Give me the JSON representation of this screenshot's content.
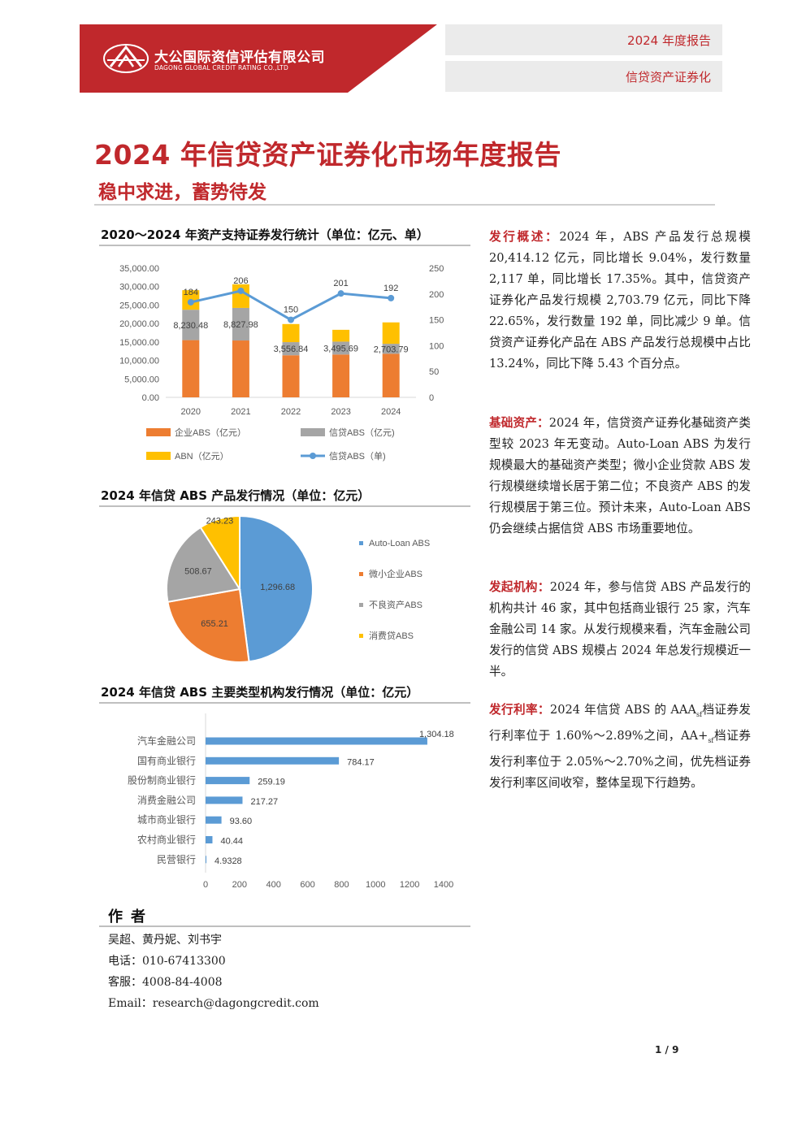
{
  "header": {
    "company_cn": "大公国际资信评估有限公司",
    "company_en": "DAGONG GLOBAL CREDIT RATING CO.,LTD",
    "tag_report": "2024 年度报告",
    "tag_category": "信贷资产证券化",
    "brand_red": "#c0282c"
  },
  "title": "2024 年信贷资产证券化市场年度报告",
  "subtitle": "稳中求进，蓄势待发",
  "sections": {
    "chart1_title": "2020～2024 年资产支持证券发行统计（单位：亿元、单）",
    "chart2_title": "2024 年信贷 ABS 产品发行情况（单位：亿元）",
    "chart3_title": "2024 年信贷 ABS 主要类型机构发行情况（单位：亿元）"
  },
  "chart_data": [
    {
      "type": "bar",
      "stacked": true,
      "categories": [
        "2020",
        "2021",
        "2022",
        "2023",
        "2024"
      ],
      "series": [
        {
          "name": "企业ABS（亿元）",
          "color": "#ed7d31",
          "values": [
            15500,
            15400,
            11400,
            11600,
            11800
          ]
        },
        {
          "name": "信贷ABS（亿元)",
          "color": "#a5a5a5",
          "values": [
            8230.48,
            8827.98,
            3556.84,
            3495.69,
            2703.79
          ],
          "labels": [
            "8,230.48",
            "8,827.98",
            "3,556.84",
            "3,495.69",
            "2,703.79"
          ]
        },
        {
          "name": "ABN（亿元）",
          "color": "#ffc000",
          "values": [
            5300,
            6400,
            4900,
            3200,
            5800
          ]
        },
        {
          "name": "信贷ABS（单)",
          "color": "#5b9bd5",
          "type": "line",
          "axis": "right",
          "values": [
            184,
            206,
            150,
            201,
            192
          ],
          "labels": [
            "184",
            "206",
            "150",
            "201",
            "192"
          ]
        }
      ],
      "ylim": [
        0,
        35000
      ],
      "yticks": [
        "0.00",
        "5,000.00",
        "10,000.00",
        "15,000.00",
        "20,000.00",
        "25,000.00",
        "30,000.00",
        "35,000.00"
      ],
      "y2lim": [
        0,
        250
      ],
      "y2ticks": [
        "0",
        "50",
        "100",
        "150",
        "200",
        "250"
      ],
      "legend": "bottom",
      "grid": false
    },
    {
      "type": "pie",
      "labels": [
        "Auto-Loan ABS",
        "微小企业ABS",
        "不良资产ABS",
        "消费贷ABS"
      ],
      "values": [
        1296.68,
        655.21,
        508.67,
        243.23
      ],
      "value_labels": [
        "1,296.68",
        "655.21",
        "508.67",
        "243.23"
      ],
      "colors": [
        "#5b9bd5",
        "#ed7d31",
        "#a5a5a5",
        "#ffc000"
      ],
      "legend": "right"
    },
    {
      "type": "bar",
      "orientation": "horizontal",
      "categories": [
        "汽车金融公司",
        "国有商业银行",
        "股份制商业银行",
        "消费金融公司",
        "城市商业银行",
        "农村商业银行",
        "民营银行"
      ],
      "values": [
        1304.18,
        784.17,
        259.19,
        217.27,
        93.6,
        40.44,
        4.9328
      ],
      "value_labels": [
        "1,304.18",
        "784.17",
        "259.19",
        "217.27",
        "93.60",
        "40.44",
        "4.9328"
      ],
      "color": "#5b9bd5",
      "xlim": [
        0,
        1400
      ],
      "xticks": [
        "0",
        "200",
        "400",
        "600",
        "800",
        "1000",
        "1200",
        "1400"
      ]
    }
  ],
  "paragraphs": [
    {
      "label": "发行概述：",
      "text": "2024 年，ABS 产品发行总规模 20,414.12 亿元，同比增长 9.04%，发行数量 2,117 单，同比增长 17.35%。其中，信贷资产证券化产品发行规模 2,703.79 亿元，同比下降 22.65%，发行数量 192 单，同比减少 9 单。信贷资产证券化产品在 ABS 产品发行总规模中占比 13.24%，同比下降 5.43 个百分点。"
    },
    {
      "label": "基础资产：",
      "text": "2024 年，信贷资产证券化基础资产类型较 2023 年无变动。Auto-Loan ABS 为发行规模最大的基础资产类型；微小企业贷款 ABS 发行规模继续增长居于第二位；不良资产 ABS 的发行规模居于第三位。预计未来，Auto-Loan ABS 仍会继续占据信贷 ABS 市场重要地位。"
    },
    {
      "label": "发起机构：",
      "text": "2024 年，参与信贷 ABS 产品发行的机构共计 46 家，其中包括商业银行 25 家，汽车金融公司 14 家。从发行规模来看，汽车金融公司发行的信贷 ABS 规模占 2024 年总发行规模近一半。"
    },
    {
      "label": "发行利率：",
      "text_a": "2024 年信贷 ABS 的 AAA",
      "sub_a": "sf",
      "text_b": "档证券发行利率位于 1.60%～2.89%之间，AA+",
      "sub_b": "sf",
      "text_c": "档证券发行利率位于 2.05%～2.70%之间，优先档证券发行利率区间收窄，整体呈现下行趋势。"
    }
  ],
  "author": {
    "title": "作者",
    "names": "吴超、黄丹妮、刘书宇",
    "phone": "电话：010-67413300",
    "service": "客服：4008-84-4008",
    "email": "Email：research@dagongcredit.com"
  },
  "page_number": "1 / 9"
}
